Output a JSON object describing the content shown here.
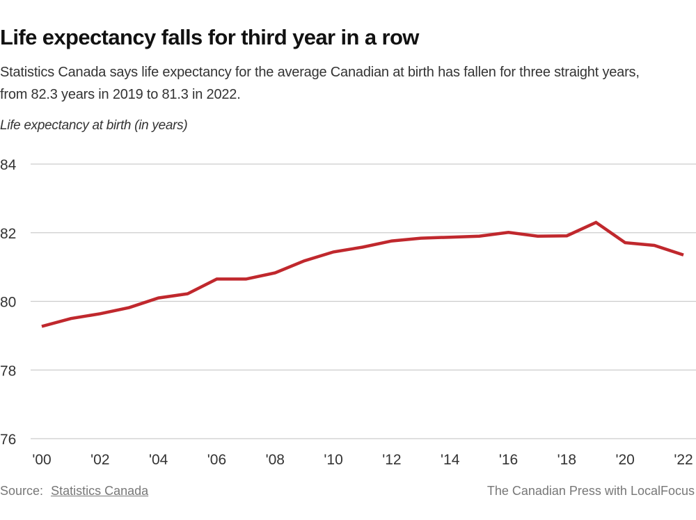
{
  "header": {
    "title": "Life expectancy falls for third year in a row",
    "subtitle": "Statistics Canada says life expectancy for the average Canadian at birth has fallen for three straight years, from 82.3 years in 2019 to 81.3 in 2022."
  },
  "footer": {
    "source_label": "Source:",
    "source_link": "Statistics Canada",
    "credit": "The Canadian Press with LocalFocus"
  },
  "colors": {
    "line": "#c0282d",
    "grid": "#cccccc"
  },
  "chart_data": {
    "type": "line",
    "title": "Life expectancy falls for third year in a row",
    "ylabel": "Life expectancy at birth (in years)",
    "xlabel": "",
    "x": [
      2000,
      2001,
      2002,
      2003,
      2004,
      2005,
      2006,
      2007,
      2008,
      2009,
      2010,
      2011,
      2012,
      2013,
      2014,
      2015,
      2016,
      2017,
      2018,
      2019,
      2020,
      2021,
      2022
    ],
    "series": [
      {
        "name": "Life expectancy at birth",
        "values": [
          79.27,
          79.5,
          79.64,
          79.82,
          80.1,
          80.22,
          80.65,
          80.65,
          80.83,
          81.18,
          81.44,
          81.58,
          81.76,
          81.84,
          81.87,
          81.9,
          82.01,
          81.9,
          81.91,
          82.3,
          81.71,
          81.63,
          81.35
        ]
      }
    ],
    "ylim": [
      76,
      84
    ],
    "xlim": [
      2000,
      2022
    ],
    "yticks": [
      84,
      82,
      80,
      78,
      76
    ],
    "xticks": [
      2000,
      2002,
      2004,
      2006,
      2008,
      2010,
      2012,
      2014,
      2016,
      2018,
      2020,
      2022
    ],
    "xtick_labels": [
      "'00",
      "'02",
      "'04",
      "'06",
      "'08",
      "'10",
      "'12",
      "'14",
      "'16",
      "'18",
      "'20",
      "'22"
    ],
    "grid": true,
    "legend": "none"
  }
}
